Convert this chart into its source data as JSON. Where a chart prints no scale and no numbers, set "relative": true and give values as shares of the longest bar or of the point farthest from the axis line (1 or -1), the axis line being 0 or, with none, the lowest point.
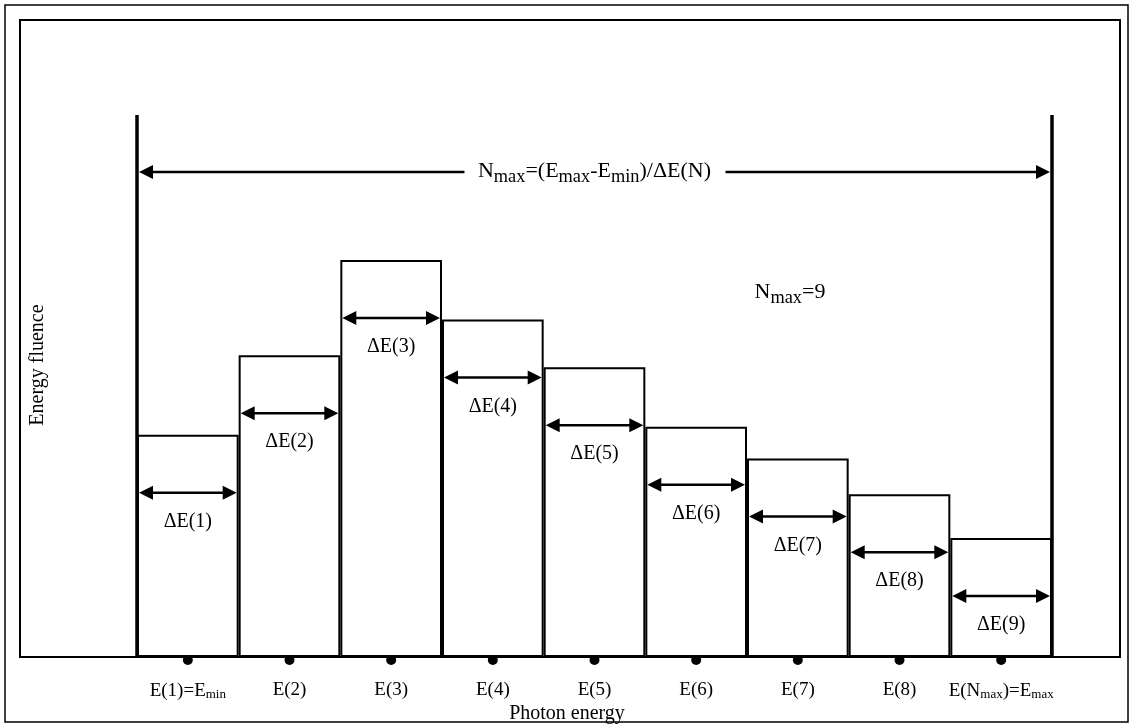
{
  "chart_data": {
    "type": "bar",
    "relative": true,
    "xlabel": "Photon energy",
    "ylabel": "Energy fluence",
    "categories": [
      "E(1)=E$_{min}$",
      "E(2)",
      "E(3)",
      "E(4)",
      "E(5)",
      "E(6)",
      "E(7)",
      "E(8)",
      "E(N$_{max}$)=E$_{max}$"
    ],
    "values": [
      0.56,
      0.76,
      1,
      0.85,
      0.73,
      0.58,
      0.5,
      0.41,
      0.3
    ],
    "color": "#ffffff",
    "annotations": [
      "ΔE(1)",
      "ΔE(2)",
      "ΔE(3)",
      "ΔE(4)",
      "ΔE(5)",
      "ΔE(6)",
      "ΔE(7)",
      "ΔE(8)",
      "ΔE(9)",
      "N$_{max}$=(E$_{max}$-E$_{min}$)/ΔE(N)",
      "N$_{max}$=9"
    ]
  }
}
